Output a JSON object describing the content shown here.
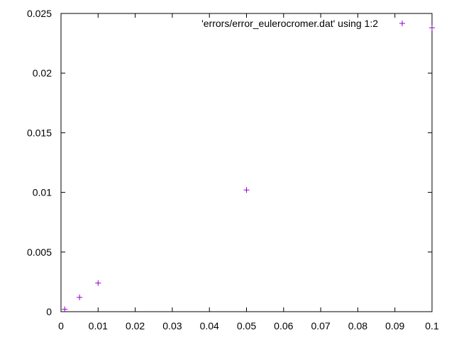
{
  "chart_data": {
    "type": "scatter",
    "title": "",
    "xlabel": "",
    "ylabel": "",
    "xlim": [
      0,
      0.1
    ],
    "ylim": [
      0,
      0.025
    ],
    "x_ticks": [
      "0",
      "0.01",
      "0.02",
      "0.03",
      "0.04",
      "0.05",
      "0.06",
      "0.07",
      "0.08",
      "0.09",
      "0.1"
    ],
    "x_tick_values": [
      0,
      0.01,
      0.02,
      0.03,
      0.04,
      0.05,
      0.06,
      0.07,
      0.08,
      0.09,
      0.1
    ],
    "y_ticks": [
      "0",
      "0.005",
      "0.01",
      "0.015",
      "0.02",
      "0.025"
    ],
    "y_tick_values": [
      0,
      0.005,
      0.01,
      0.015,
      0.02,
      0.025
    ],
    "grid": false,
    "legend_position": "top-right",
    "marker": "plus",
    "series": [
      {
        "name": "'errors/error_eulerocromer.dat' using 1:2",
        "color": "#9400d3",
        "points": [
          {
            "x": 0.001,
            "y": 0.0002
          },
          {
            "x": 0.005,
            "y": 0.0012
          },
          {
            "x": 0.01,
            "y": 0.0024
          },
          {
            "x": 0.05,
            "y": 0.0102
          },
          {
            "x": 0.1,
            "y": 0.0238
          }
        ]
      }
    ]
  }
}
